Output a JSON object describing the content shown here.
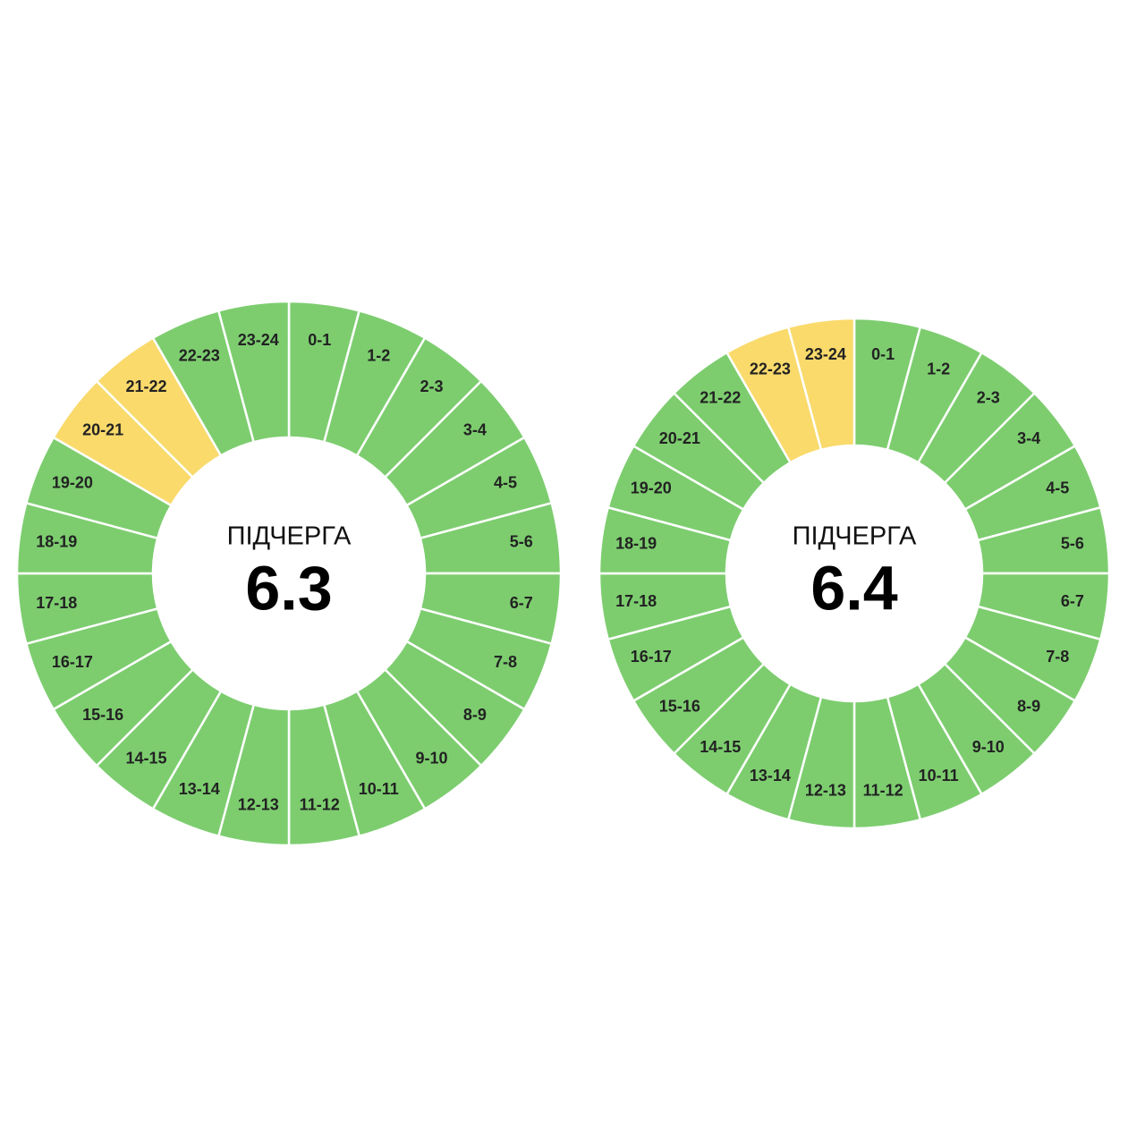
{
  "diagrams": [
    {
      "caption": "ПІДЧЕРГА",
      "queue": "6.3",
      "segments": [
        {
          "label": "0-1",
          "color": "#7dcd6f"
        },
        {
          "label": "1-2",
          "color": "#7dcd6f"
        },
        {
          "label": "2-3",
          "color": "#7dcd6f"
        },
        {
          "label": "3-4",
          "color": "#7dcd6f"
        },
        {
          "label": "4-5",
          "color": "#7dcd6f"
        },
        {
          "label": "5-6",
          "color": "#7dcd6f"
        },
        {
          "label": "6-7",
          "color": "#7dcd6f"
        },
        {
          "label": "7-8",
          "color": "#7dcd6f"
        },
        {
          "label": "8-9",
          "color": "#7dcd6f"
        },
        {
          "label": "9-10",
          "color": "#7dcd6f"
        },
        {
          "label": "10-11",
          "color": "#7dcd6f"
        },
        {
          "label": "11-12",
          "color": "#7dcd6f"
        },
        {
          "label": "12-13",
          "color": "#7dcd6f"
        },
        {
          "label": "13-14",
          "color": "#7dcd6f"
        },
        {
          "label": "14-15",
          "color": "#7dcd6f"
        },
        {
          "label": "15-16",
          "color": "#7dcd6f"
        },
        {
          "label": "16-17",
          "color": "#7dcd6f"
        },
        {
          "label": "17-18",
          "color": "#7dcd6f"
        },
        {
          "label": "18-19",
          "color": "#7dcd6f"
        },
        {
          "label": "19-20",
          "color": "#7dcd6f"
        },
        {
          "label": "20-21",
          "color": "#f9da6b"
        },
        {
          "label": "21-22",
          "color": "#f9da6b"
        },
        {
          "label": "22-23",
          "color": "#7dcd6f"
        },
        {
          "label": "23-24",
          "color": "#7dcd6f"
        }
      ]
    },
    {
      "caption": "ПІДЧЕРГА",
      "queue": "6.4",
      "segments": [
        {
          "label": "0-1",
          "color": "#7dcd6f"
        },
        {
          "label": "1-2",
          "color": "#7dcd6f"
        },
        {
          "label": "2-3",
          "color": "#7dcd6f"
        },
        {
          "label": "3-4",
          "color": "#7dcd6f"
        },
        {
          "label": "4-5",
          "color": "#7dcd6f"
        },
        {
          "label": "5-6",
          "color": "#7dcd6f"
        },
        {
          "label": "6-7",
          "color": "#7dcd6f"
        },
        {
          "label": "7-8",
          "color": "#7dcd6f"
        },
        {
          "label": "8-9",
          "color": "#7dcd6f"
        },
        {
          "label": "9-10",
          "color": "#7dcd6f"
        },
        {
          "label": "10-11",
          "color": "#7dcd6f"
        },
        {
          "label": "11-12",
          "color": "#7dcd6f"
        },
        {
          "label": "12-13",
          "color": "#7dcd6f"
        },
        {
          "label": "13-14",
          "color": "#7dcd6f"
        },
        {
          "label": "14-15",
          "color": "#7dcd6f"
        },
        {
          "label": "15-16",
          "color": "#7dcd6f"
        },
        {
          "label": "16-17",
          "color": "#7dcd6f"
        },
        {
          "label": "17-18",
          "color": "#7dcd6f"
        },
        {
          "label": "18-19",
          "color": "#7dcd6f"
        },
        {
          "label": "19-20",
          "color": "#7dcd6f"
        },
        {
          "label": "20-21",
          "color": "#7dcd6f"
        },
        {
          "label": "21-22",
          "color": "#7dcd6f"
        },
        {
          "label": "22-23",
          "color": "#f9da6b"
        },
        {
          "label": "23-24",
          "color": "#f9da6b"
        }
      ]
    }
  ]
}
